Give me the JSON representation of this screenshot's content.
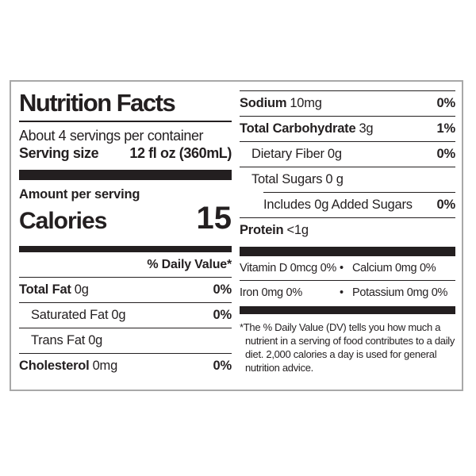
{
  "label": {
    "title": "Nutrition Facts",
    "servings_per_container": "About 4 servings per container",
    "serving_size_label": "Serving size",
    "serving_size_value": "12 fl oz (360mL)",
    "amount_per_serving": "Amount per serving",
    "calories_label": "Calories",
    "calories_value": "15",
    "daily_value_header": "% Daily Value*",
    "left_rows": [
      {
        "name": "Total Fat",
        "amount": "0g",
        "dv": "0%"
      },
      {
        "name": "Saturated Fat",
        "amount": "0g",
        "dv": "0%"
      },
      {
        "name": "Trans Fat",
        "amount": "0g",
        "dv": ""
      },
      {
        "name": "Cholesterol",
        "amount": "0mg",
        "dv": "0%"
      }
    ],
    "right_rows": [
      {
        "name": "Sodium",
        "amount": "10mg",
        "dv": "0%"
      },
      {
        "name": "Total Carbohydrate",
        "amount": "3g",
        "dv": "1%"
      },
      {
        "name": "Dietary Fiber",
        "amount": "0g",
        "dv": "0%"
      },
      {
        "name": "Total Sugars",
        "amount": "0 g",
        "dv": ""
      },
      {
        "name": "Includes 0g Added Sugars",
        "amount": "",
        "dv": "0%"
      },
      {
        "name": "Protein",
        "amount": "<1g",
        "dv": ""
      }
    ],
    "micronutrients": {
      "bullet": "•",
      "row1_left": "Vitamin D 0mcg 0%",
      "row1_right": "Calcium 0mg 0%",
      "row2_left": "Iron 0mg 0%",
      "row2_right": "Potassium 0mg 0%"
    },
    "footnote": "*The % Daily Value (DV) tells you how much a nutrient in a serving of food contributes to a daily diet. 2,000 calories a day is used for general nutrition advice."
  },
  "colors": {
    "text": "#231f20",
    "rule": "#231f20",
    "border": "#a8a8a8",
    "background": "#ffffff"
  }
}
